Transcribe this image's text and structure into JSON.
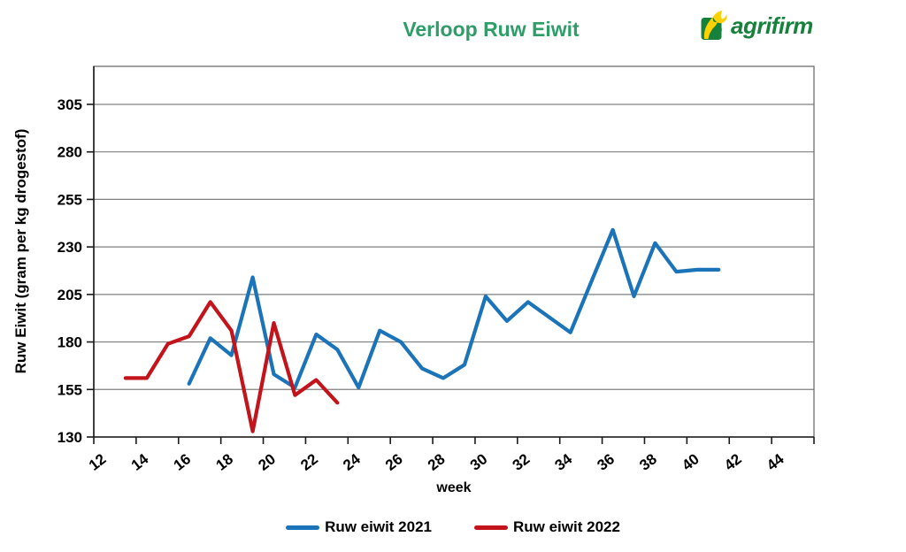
{
  "title": "Verloop Ruw Eiwit",
  "logo": {
    "text": "agrifirm"
  },
  "colors": {
    "title_green": "#2e9d68",
    "logo_green": "#15813a",
    "logo_yellow": "#ffd100",
    "blue": "#1b74b9",
    "red": "#c3131b",
    "grid": "#7f7f7f",
    "border": "#6e6e6e",
    "axis": "#1a1a1a"
  },
  "chart_data": {
    "type": "line",
    "title": "Verloop Ruw Eiwit",
    "xlabel": "week",
    "ylabel": "Ruw Eiwit (gram per kg drogestof)",
    "xlim": [
      11.5,
      45.5
    ],
    "ylim": [
      130,
      325
    ],
    "x_ticks": [
      12,
      14,
      16,
      18,
      20,
      22,
      24,
      26,
      28,
      30,
      32,
      34,
      36,
      38,
      40,
      42,
      44
    ],
    "y_ticks": [
      130,
      155,
      180,
      205,
      230,
      255,
      280,
      305
    ],
    "grid": "horizontal",
    "legend_position": "bottom",
    "series": [
      {
        "name": "Ruw eiwit 2021",
        "color": "#1b74b9",
        "x": [
          16,
          17,
          18,
          19,
          20,
          21,
          22,
          23,
          24,
          25,
          26,
          27,
          28,
          29,
          30,
          31,
          32,
          33,
          34,
          35,
          36,
          37,
          38,
          39,
          40,
          41
        ],
        "values": [
          158,
          182,
          173,
          214,
          163,
          156,
          184,
          176,
          156,
          186,
          180,
          166,
          161,
          168,
          204,
          191,
          201,
          193,
          185,
          212,
          239,
          204,
          232,
          217,
          218,
          218
        ]
      },
      {
        "name": "Ruw eiwit 2022",
        "color": "#c3131b",
        "x": [
          13,
          14,
          15,
          16,
          17,
          18,
          19,
          20,
          21,
          22,
          23
        ],
        "values": [
          161,
          161,
          179,
          183,
          201,
          186,
          133,
          190,
          152,
          160,
          148
        ]
      }
    ]
  }
}
